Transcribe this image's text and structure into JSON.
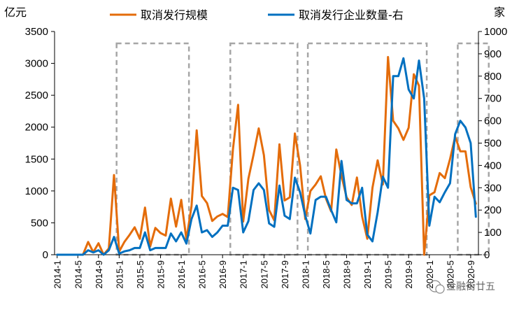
{
  "chart_data": {
    "type": "line",
    "left_unit": "亿元",
    "right_unit": "家",
    "left_ylim": [
      0,
      3500
    ],
    "right_ylim": [
      0,
      1000
    ],
    "left_ticks": [
      "0",
      "500",
      "1000",
      "1500",
      "2000",
      "2500",
      "3000",
      "3500"
    ],
    "right_ticks": [
      "0",
      "100",
      "200",
      "300",
      "400",
      "500",
      "600",
      "700",
      "800",
      "900",
      "1000"
    ],
    "x_tick_labels": [
      "2014-1",
      "2014-5",
      "2014-9",
      "2015-1",
      "2015-5",
      "2015-9",
      "2016-1",
      "2016-5",
      "2016-9",
      "2017-1",
      "2017-5",
      "2017-9",
      "2018-1",
      "2018-5",
      "2018-9",
      "2019-1",
      "2019-5",
      "2019-9",
      "2020-1",
      "2020-5",
      "2020-9"
    ],
    "highlight_boxes": [
      {
        "from": "2015-1",
        "to": "2016-2"
      },
      {
        "from": "2016-11",
        "to": "2017-11"
      },
      {
        "from": "2018-2",
        "to": "2019-12"
      },
      {
        "from": "2020-7",
        "to": "2020-12"
      }
    ],
    "series": [
      {
        "name": "取消发行规模",
        "axis": "left",
        "color": "#E46C0A",
        "values": [
          0,
          0,
          0,
          0,
          0,
          0,
          200,
          40,
          180,
          0,
          100,
          1250,
          50,
          200,
          310,
          430,
          250,
          740,
          130,
          420,
          340,
          300,
          880,
          440,
          860,
          240,
          760,
          1950,
          920,
          810,
          530,
          600,
          640,
          590,
          1650,
          2350,
          520,
          1190,
          1570,
          1980,
          1560,
          700,
          540,
          1730,
          850,
          900,
          1900,
          1400,
          560,
          1000,
          1100,
          1230,
          880,
          680,
          1650,
          1240,
          900,
          780,
          1210,
          600,
          250,
          1050,
          1480,
          1100,
          3100,
          2100,
          1980,
          1800,
          1990,
          2830,
          2650,
          0,
          930,
          980,
          1280,
          1200,
          1500,
          1850,
          1620,
          1620,
          1060,
          800
        ],
        "color_name": "orange"
      },
      {
        "name": "取消发行企业数量-右",
        "axis": "right",
        "color": "#0070C0",
        "values": [
          0,
          0,
          0,
          0,
          0,
          0,
          20,
          10,
          20,
          0,
          20,
          80,
          5,
          15,
          20,
          30,
          30,
          100,
          20,
          30,
          30,
          30,
          95,
          60,
          100,
          50,
          160,
          220,
          100,
          110,
          80,
          100,
          130,
          130,
          300,
          290,
          100,
          150,
          290,
          320,
          290,
          140,
          125,
          310,
          175,
          160,
          345,
          280,
          175,
          95,
          245,
          260,
          260,
          200,
          145,
          420,
          245,
          230,
          230,
          300,
          90,
          60,
          190,
          350,
          300,
          800,
          800,
          880,
          740,
          700,
          870,
          700,
          130,
          260,
          235,
          280,
          320,
          540,
          600,
          570,
          500,
          170
        ]
      }
    ]
  },
  "legend": [
    {
      "label": "取消发行规模",
      "color": "#E46C0A"
    },
    {
      "label": "取消发行企业数量-右",
      "color": "#0070C0"
    }
  ],
  "watermark": "金融街廿五"
}
